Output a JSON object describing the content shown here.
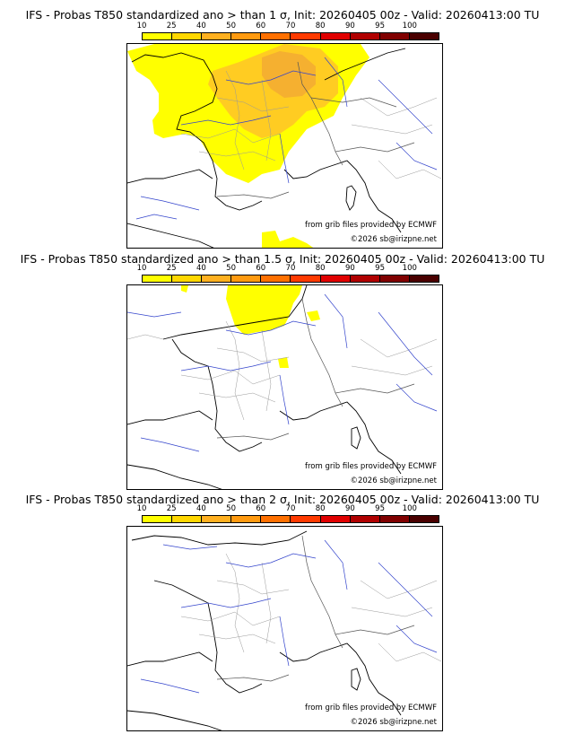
{
  "colors": {
    "scale": [
      "#ffff00",
      "#ffd700",
      "#ffb020",
      "#ff9a10",
      "#ff7000",
      "#ff3a00",
      "#e00000",
      "#b00000",
      "#800000",
      "#4a0000"
    ],
    "coast": "#000000",
    "rivers": "#3333cc",
    "borders": "#999999"
  },
  "colorbar": {
    "ticks": [
      "10",
      "25",
      "40",
      "50",
      "60",
      "70",
      "80",
      "90",
      "95",
      "100"
    ]
  },
  "credits": {
    "source": "from grib files provided by ECMWF",
    "copyright": "©2026 sb@irizpne.net"
  },
  "panels": [
    {
      "title": "IFS - Probas T850  standardized ano > than 1 σ, Init: 20260405 00z - Valid: 20260413:00 TU"
    },
    {
      "title": "IFS - Probas T850  standardized ano > than 1.5 σ, Init: 20260405 00z - Valid: 20260413:00 TU"
    },
    {
      "title": "IFS - Probas T850  standardized ano > than 2 σ, Init: 20260405 00z - Valid: 20260413:00 TU"
    }
  ]
}
